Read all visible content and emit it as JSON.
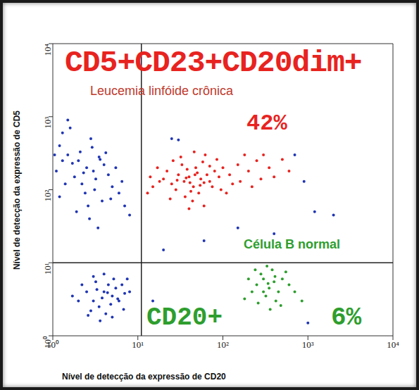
{
  "chart_data": {
    "type": "scatter",
    "log": true,
    "grid": false,
    "tick_labels": true,
    "x_label": "Nível de detecção da expressão de CD20",
    "y_label": "Nível de detecção da expressão de CD5",
    "xlim": [
      1,
      10000
    ],
    "ylim": [
      1,
      10000
    ],
    "xticks": [
      {
        "value": 1,
        "label": "10⁰"
      },
      {
        "value": 10,
        "label": "10¹"
      },
      {
        "value": 100,
        "label": "10²"
      },
      {
        "value": 1000,
        "label": "10³"
      },
      {
        "value": 10000,
        "label": "10⁴"
      }
    ],
    "yticks": [
      {
        "value": 1,
        "label": "10⁰"
      },
      {
        "value": 10,
        "label": "10¹"
      },
      {
        "value": 100,
        "label": "10²"
      },
      {
        "value": 1000,
        "label": "10³"
      },
      {
        "value": 10000,
        "label": "10⁴"
      }
    ],
    "quadrant_x": 11,
    "quadrant_y": 10,
    "annotations": [
      {
        "text": "CD5+CD23+CD20dim+",
        "color": "#e8231f"
      },
      {
        "text": "Leucemia linfóide crônica",
        "color": "#c0392b"
      },
      {
        "text": "42%",
        "color": "#e8231f"
      },
      {
        "text": "Célula B normal",
        "color": "#2e9e2e"
      },
      {
        "text": "CD20+",
        "color": "#2e9e2e"
      },
      {
        "text": "6%",
        "color": "#2e9e2e"
      }
    ],
    "series": [
      {
        "color": "#e8231f",
        "marker": "dot",
        "x": [
          20,
          25,
          30,
          35,
          40,
          45,
          50,
          55,
          60,
          38,
          28,
          33,
          42,
          48,
          65,
          70,
          80,
          90,
          22,
          18,
          15,
          17,
          26,
          36,
          44,
          52,
          58,
          75,
          100,
          120,
          150,
          200,
          250,
          300,
          400,
          500,
          130,
          110,
          85,
          62,
          46,
          32,
          24,
          14,
          13,
          40,
          60,
          95,
          160,
          220,
          180,
          350,
          600,
          280,
          70,
          54,
          37,
          29,
          41,
          47
        ],
        "values": [
          140,
          120,
          160,
          130,
          150,
          110,
          170,
          140,
          125,
          190,
          100,
          220,
          95,
          200,
          160,
          130,
          180,
          150,
          180,
          130,
          110,
          200,
          250,
          80,
          70,
          90,
          240,
          110,
          200,
          160,
          220,
          180,
          250,
          300,
          150,
          260,
          120,
          90,
          260,
          300,
          330,
          280,
          75,
          150,
          90,
          55,
          60,
          100,
          130,
          110,
          300,
          200,
          180,
          140,
          210,
          115,
          145,
          135,
          125,
          160
        ]
      },
      {
        "color": "#1f35b5",
        "marker": "dot",
        "x": [
          1.5,
          2,
          2.5,
          3,
          1.2,
          1.8,
          2.2,
          3.5,
          4,
          1.3,
          1.6,
          2.8,
          1.1,
          1.4,
          2.4,
          3.2,
          4.5,
          5,
          6,
          7,
          5.5,
          3.8,
          2.6,
          1.9,
          1.2,
          1.7,
          2.1,
          2.9,
          3.6,
          4.2,
          1.3,
          2.3,
          3.1,
          4.8,
          6.5,
          8,
          1.5,
          2.7,
          3.4,
          1.05
        ],
        "values": [
          300,
          250,
          200,
          180,
          400,
          150,
          120,
          280,
          220,
          600,
          700,
          500,
          180,
          120,
          90,
          140,
          160,
          110,
          90,
          60,
          200,
          70,
          60,
          50,
          80,
          230,
          330,
          380,
          260,
          320,
          250,
          170,
          100,
          75,
          130,
          45,
          900,
          40,
          30,
          300
        ]
      },
      {
        "color": "#1f35b5",
        "marker": "dot",
        "x": [
          3,
          4,
          5,
          3.5,
          4.5,
          2.5,
          6,
          5.5,
          2,
          3.2,
          4.2,
          6.5,
          7,
          2.8,
          3.8,
          4.8,
          5.2,
          2.2,
          1.7,
          6.8,
          4,
          3,
          8,
          5,
          3.6,
          2.6,
          7.5,
          4.4,
          3.3,
          5.8
        ],
        "values": [
          3,
          4,
          3.5,
          2.5,
          5,
          4,
          3,
          4.5,
          3,
          5.5,
          2,
          5,
          3.8,
          2.2,
          3.3,
          2.7,
          6,
          5,
          3.5,
          2.3,
          7,
          6.5,
          4,
          1.8,
          1.6,
          1.9,
          6,
          3.9,
          4.3,
          3.2
        ]
      },
      {
        "color": "#2e9e2e",
        "marker": "dot",
        "x": [
          250,
          300,
          350,
          400,
          320,
          280,
          450,
          380,
          220,
          500,
          260,
          330,
          420,
          600,
          200,
          360,
          700,
          300,
          550,
          240,
          480,
          180,
          410,
          340,
          850
        ],
        "values": [
          5,
          6,
          4.5,
          5.5,
          3.5,
          7,
          4,
          8,
          4,
          6,
          2.8,
          9,
          3,
          5,
          6,
          2.3,
          4,
          4,
          7.5,
          8,
          2.6,
          3.2,
          6.5,
          5.2,
          3
        ]
      },
      {
        "color": "#1f35b5",
        "marker": "dot",
        "x": [
          25,
          30,
          20,
          150,
          1200,
          2000,
          900,
          400,
          700,
          1000,
          15,
          60
        ],
        "values": [
          500,
          480,
          15,
          30,
          50,
          45,
          130,
          25,
          300,
          1.5,
          3,
          20
        ]
      }
    ]
  }
}
